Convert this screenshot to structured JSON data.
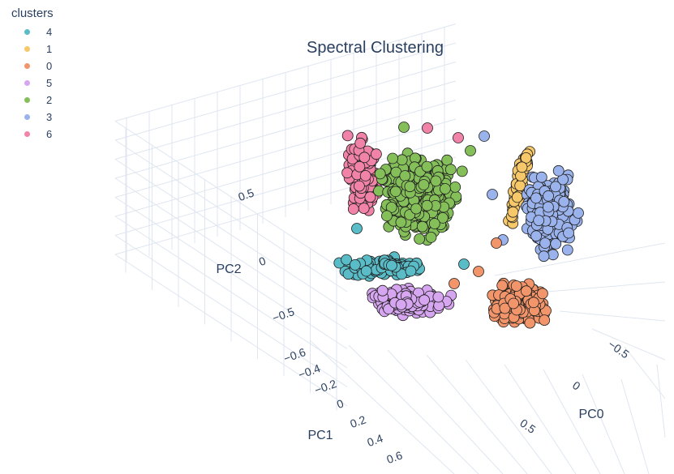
{
  "chart_data": {
    "type": "scatter",
    "title": "Spectral Clustering",
    "legend": {
      "title": "clusters",
      "placement": "top-left"
    },
    "axes": {
      "x": {
        "label": "PC0",
        "ticks": [
          "−0.5",
          "0",
          "0.5"
        ]
      },
      "y": {
        "label": "PC1",
        "ticks": [
          "−0.6",
          "−0.4",
          "−0.2",
          "0",
          "0.2",
          "0.4",
          "0.6"
        ]
      },
      "z": {
        "label": "PC2",
        "ticks": [
          "−0.5",
          "0",
          "0.5"
        ]
      }
    },
    "grid": true,
    "series": [
      {
        "name": "4",
        "color": "#5ABCC7",
        "pc0_range": [
          -0.9,
          -0.1
        ],
        "pc1_range": [
          -0.4,
          0.0
        ],
        "pc2_range": [
          -0.15,
          0.05
        ]
      },
      {
        "name": "1",
        "color": "#F6C86A",
        "pc0_range": [
          0.05,
          0.15
        ],
        "pc1_range": [
          -0.5,
          -0.3
        ],
        "pc2_range": [
          0.0,
          0.8
        ]
      },
      {
        "name": "0",
        "color": "#F2956A",
        "pc0_range": [
          0.3,
          0.7
        ],
        "pc1_range": [
          0.0,
          0.3
        ],
        "pc2_range": [
          -0.5,
          -0.2
        ]
      },
      {
        "name": "5",
        "color": "#D7A6F0",
        "pc0_range": [
          -0.4,
          0.2
        ],
        "pc1_range": [
          0.0,
          0.3
        ],
        "pc2_range": [
          -0.5,
          -0.2
        ]
      },
      {
        "name": "2",
        "color": "#85BF5A",
        "pc0_range": [
          -0.4,
          0.1
        ],
        "pc1_range": [
          -0.4,
          0.0
        ],
        "pc2_range": [
          0.2,
          0.8
        ]
      },
      {
        "name": "3",
        "color": "#9BB3EC",
        "pc0_range": [
          0.2,
          0.6
        ],
        "pc1_range": [
          -0.5,
          -0.2
        ],
        "pc2_range": [
          0.0,
          0.6
        ]
      },
      {
        "name": "6",
        "color": "#F283A8",
        "pc0_range": [
          -0.8,
          -0.5
        ],
        "pc1_range": [
          -0.5,
          -0.2
        ],
        "pc2_range": [
          0.3,
          0.8
        ]
      }
    ]
  }
}
